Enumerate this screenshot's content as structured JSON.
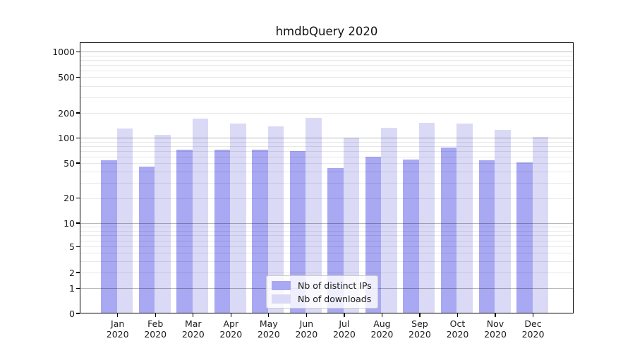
{
  "chart_data": {
    "type": "bar",
    "title": "hmdbQuery 2020",
    "categories": [
      "Jan",
      "Feb",
      "Mar",
      "Apr",
      "May",
      "Jun",
      "Jul",
      "Aug",
      "Sep",
      "Oct",
      "Nov",
      "Dec"
    ],
    "category_year": "2020",
    "series": [
      {
        "name": "Nb of distinct IPs",
        "color": "#a8a8f3",
        "values": [
          54,
          46,
          72,
          73,
          73,
          70,
          44,
          59,
          55,
          76,
          54,
          51
        ]
      },
      {
        "name": "Nb of downloads",
        "color": "#dadaf7",
        "values": [
          130,
          108,
          171,
          149,
          138,
          176,
          100,
          132,
          152,
          149,
          124,
          102
        ]
      }
    ],
    "yticks": [
      0,
      1,
      2,
      5,
      10,
      20,
      50,
      100,
      200,
      500,
      1000
    ],
    "ylim": [
      0,
      1300
    ],
    "xlabel": "",
    "ylabel": "",
    "scale": "log-with-zero",
    "grid": "on",
    "legend_position": "lower-center-inside"
  },
  "colors": {
    "background": "#ffffff",
    "axis": "#000000",
    "text": "#1a1a1a",
    "major_grid": "#b8b8b8",
    "minor_grid": "#e8e8e8"
  }
}
